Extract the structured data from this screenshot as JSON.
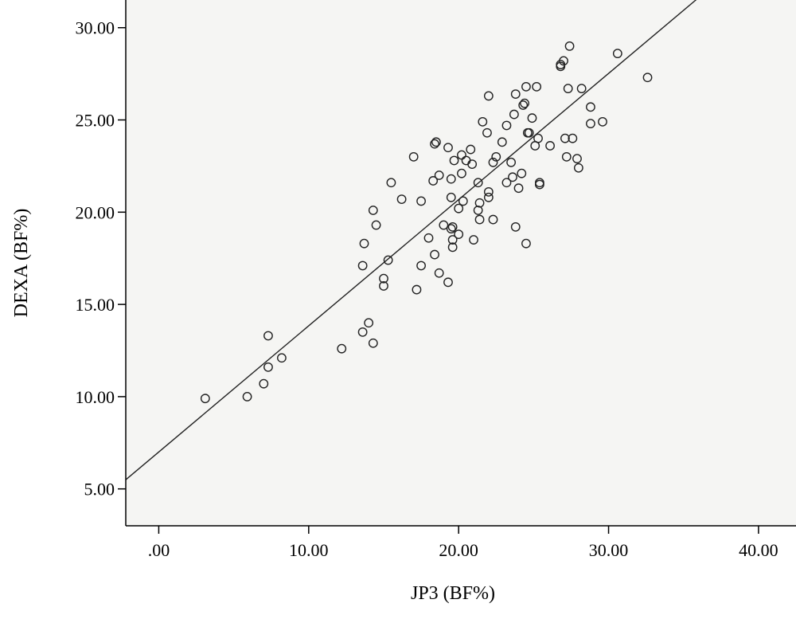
{
  "chart_data": {
    "type": "scatter",
    "title": "",
    "xlabel": "JP3 (BF%)",
    "ylabel": "DEXA (BF%)",
    "xlim": [
      -2.2,
      42.5
    ],
    "ylim": [
      3.0,
      31.5
    ],
    "x_ticks": [
      0,
      10,
      20,
      30,
      40
    ],
    "x_tick_labels": [
      ".00",
      "10.00",
      "20.00",
      "30.00",
      "40.00"
    ],
    "y_ticks": [
      5,
      10,
      15,
      20,
      25,
      30
    ],
    "y_tick_labels": [
      "5.00",
      "10.00",
      "15.00",
      "20.00",
      "25.00",
      "30.00"
    ],
    "grid": false,
    "background": "#f5f5f3",
    "fit_line": {
      "intercept": 7.0,
      "slope": 0.684
    },
    "points": [
      [
        3.1,
        9.9
      ],
      [
        5.9,
        10.0
      ],
      [
        7.0,
        10.7
      ],
      [
        7.3,
        11.6
      ],
      [
        7.3,
        13.3
      ],
      [
        8.2,
        12.1
      ],
      [
        12.2,
        12.6
      ],
      [
        13.6,
        13.5
      ],
      [
        14.0,
        14.0
      ],
      [
        14.3,
        12.9
      ],
      [
        13.6,
        17.1
      ],
      [
        13.7,
        18.3
      ],
      [
        14.3,
        20.1
      ],
      [
        14.5,
        19.3
      ],
      [
        15.0,
        16.0
      ],
      [
        15.0,
        16.4
      ],
      [
        15.3,
        17.4
      ],
      [
        15.5,
        21.6
      ],
      [
        16.2,
        20.7
      ],
      [
        17.0,
        23.0
      ],
      [
        17.2,
        15.8
      ],
      [
        17.5,
        20.6
      ],
      [
        17.5,
        17.1
      ],
      [
        18.0,
        18.6
      ],
      [
        18.3,
        21.7
      ],
      [
        18.4,
        17.7
      ],
      [
        18.4,
        23.7
      ],
      [
        18.5,
        23.8
      ],
      [
        18.7,
        22.0
      ],
      [
        18.7,
        16.7
      ],
      [
        19.0,
        19.3
      ],
      [
        19.3,
        23.5
      ],
      [
        19.3,
        16.2
      ],
      [
        19.5,
        20.8
      ],
      [
        19.5,
        21.8
      ],
      [
        19.5,
        19.1
      ],
      [
        19.6,
        18.5
      ],
      [
        19.6,
        18.1
      ],
      [
        19.6,
        19.2
      ],
      [
        19.7,
        22.8
      ],
      [
        20.0,
        20.2
      ],
      [
        20.0,
        18.8
      ],
      [
        20.2,
        23.1
      ],
      [
        20.2,
        22.1
      ],
      [
        20.3,
        20.6
      ],
      [
        20.5,
        22.8
      ],
      [
        20.8,
        23.4
      ],
      [
        20.9,
        22.6
      ],
      [
        21.0,
        18.5
      ],
      [
        21.3,
        20.1
      ],
      [
        21.3,
        21.6
      ],
      [
        21.4,
        19.6
      ],
      [
        21.4,
        20.5
      ],
      [
        21.6,
        24.9
      ],
      [
        21.9,
        24.3
      ],
      [
        22.0,
        26.3
      ],
      [
        22.0,
        21.1
      ],
      [
        22.0,
        20.8
      ],
      [
        22.3,
        19.6
      ],
      [
        22.3,
        22.7
      ],
      [
        22.5,
        23.0
      ],
      [
        22.9,
        23.8
      ],
      [
        23.2,
        24.7
      ],
      [
        23.2,
        21.6
      ],
      [
        23.5,
        22.7
      ],
      [
        23.6,
        21.9
      ],
      [
        23.7,
        25.3
      ],
      [
        23.8,
        26.4
      ],
      [
        23.8,
        19.2
      ],
      [
        24.0,
        21.3
      ],
      [
        24.2,
        22.1
      ],
      [
        24.3,
        25.8
      ],
      [
        24.4,
        25.9
      ],
      [
        24.5,
        26.8
      ],
      [
        24.5,
        18.3
      ],
      [
        24.6,
        24.3
      ],
      [
        24.7,
        24.3
      ],
      [
        24.9,
        25.1
      ],
      [
        25.1,
        23.6
      ],
      [
        25.2,
        26.8
      ],
      [
        25.3,
        24.0
      ],
      [
        25.4,
        21.5
      ],
      [
        25.4,
        21.6
      ],
      [
        26.1,
        23.6
      ],
      [
        26.8,
        27.9
      ],
      [
        26.8,
        28.0
      ],
      [
        27.0,
        28.2
      ],
      [
        27.1,
        24.0
      ],
      [
        27.2,
        23.0
      ],
      [
        27.3,
        26.7
      ],
      [
        27.4,
        29.0
      ],
      [
        27.6,
        24.0
      ],
      [
        27.9,
        22.9
      ],
      [
        28.0,
        22.4
      ],
      [
        28.2,
        26.7
      ],
      [
        28.8,
        24.8
      ],
      [
        28.8,
        25.7
      ],
      [
        29.6,
        24.9
      ],
      [
        30.6,
        28.6
      ],
      [
        32.6,
        27.3
      ]
    ]
  }
}
